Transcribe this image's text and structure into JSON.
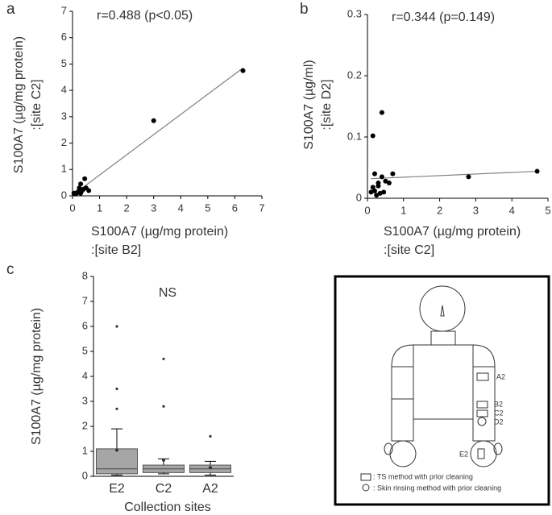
{
  "chart_data": [
    {
      "type": "scatter",
      "panel_label": "a",
      "annotation": "r=0.488 (p<0.05)",
      "x_label": [
        "S100A7 (µg/mg protein)",
        ":[site B2]"
      ],
      "y_label": [
        "S100A7 (µg/mg protein)",
        ":[site C2]"
      ],
      "x": [
        6.3,
        3.0,
        0.45,
        0.5,
        0.3,
        0.25,
        0.6,
        0.1,
        0.15,
        0.2,
        0.3,
        0.35,
        0.05,
        0.4
      ],
      "y": [
        4.75,
        2.85,
        0.65,
        0.3,
        0.45,
        0.3,
        0.2,
        0.1,
        0.1,
        0.15,
        0.1,
        0.2,
        0.1,
        0.25
      ],
      "color": "#000000",
      "fit": {
        "x": [
          0.1,
          6.3
        ],
        "y": [
          0.1,
          4.85
        ],
        "color": "#808080"
      },
      "xlim": [
        0,
        7
      ],
      "xticks": [
        0,
        1,
        2,
        3,
        4,
        5,
        6,
        7
      ],
      "ylim": [
        0,
        7
      ],
      "yticks": [
        0,
        1,
        2,
        3,
        4,
        5,
        6,
        7
      ]
    },
    {
      "type": "scatter",
      "panel_label": "b",
      "annotation": "r=0.344 (p=0.149)",
      "x_label": [
        "S100A7 (µg/mg protein)",
        ":[site C2]"
      ],
      "y_label": [
        "S100A7 (µg/ml)",
        ":[site D2]"
      ],
      "x": [
        4.7,
        2.8,
        0.4,
        0.15,
        0.7,
        0.2,
        0.3,
        0.4,
        0.5,
        0.1,
        0.2,
        0.25,
        0.35,
        0.45,
        0.6,
        0.3,
        0.15
      ],
      "y": [
        0.044,
        0.035,
        0.14,
        0.102,
        0.04,
        0.04,
        0.025,
        0.035,
        0.028,
        0.01,
        0.012,
        0.005,
        0.008,
        0.01,
        0.025,
        0.02,
        0.018
      ],
      "color": "#000000",
      "fit": {
        "x": [
          0.1,
          4.7
        ],
        "y": [
          0.032,
          0.044
        ],
        "color": "#808080"
      },
      "xlim": [
        0,
        5
      ],
      "xticks": [
        0,
        1,
        2,
        3,
        4,
        5
      ],
      "ylim": [
        0,
        0.3
      ],
      "yticks": [
        0,
        0.1,
        0.2,
        0.3
      ]
    },
    {
      "type": "box",
      "panel_label": "c",
      "annotation": "NS",
      "x_label": "Collection sites",
      "y_label": "S100A7 (µg/mg protein)",
      "categories": [
        "E2",
        "C2",
        "A2"
      ],
      "color": "#a6a6a6",
      "whisker_low": [
        0.05,
        0.1,
        0.05
      ],
      "q1": [
        0.1,
        0.15,
        0.15
      ],
      "median": [
        0.3,
        0.3,
        0.3
      ],
      "q3": [
        1.1,
        0.45,
        0.45
      ],
      "whisker_high": [
        1.9,
        0.7,
        0.6
      ],
      "means": [
        1.05,
        0.65,
        0.35
      ],
      "outliers": [
        [
          2.7,
          3.5,
          6.0
        ],
        [
          2.8,
          4.7
        ],
        [
          1.6
        ]
      ],
      "ylim": [
        0,
        8
      ],
      "yticks": [
        0,
        1,
        2,
        3,
        4,
        5,
        6,
        7,
        8
      ]
    }
  ],
  "diagram": {
    "sites": [
      "A2",
      "B2",
      "C2",
      "D2",
      "E2"
    ],
    "legend": [
      ": TS method with prior cleaning",
      ": Skin rinsing method with prior cleaning"
    ]
  }
}
